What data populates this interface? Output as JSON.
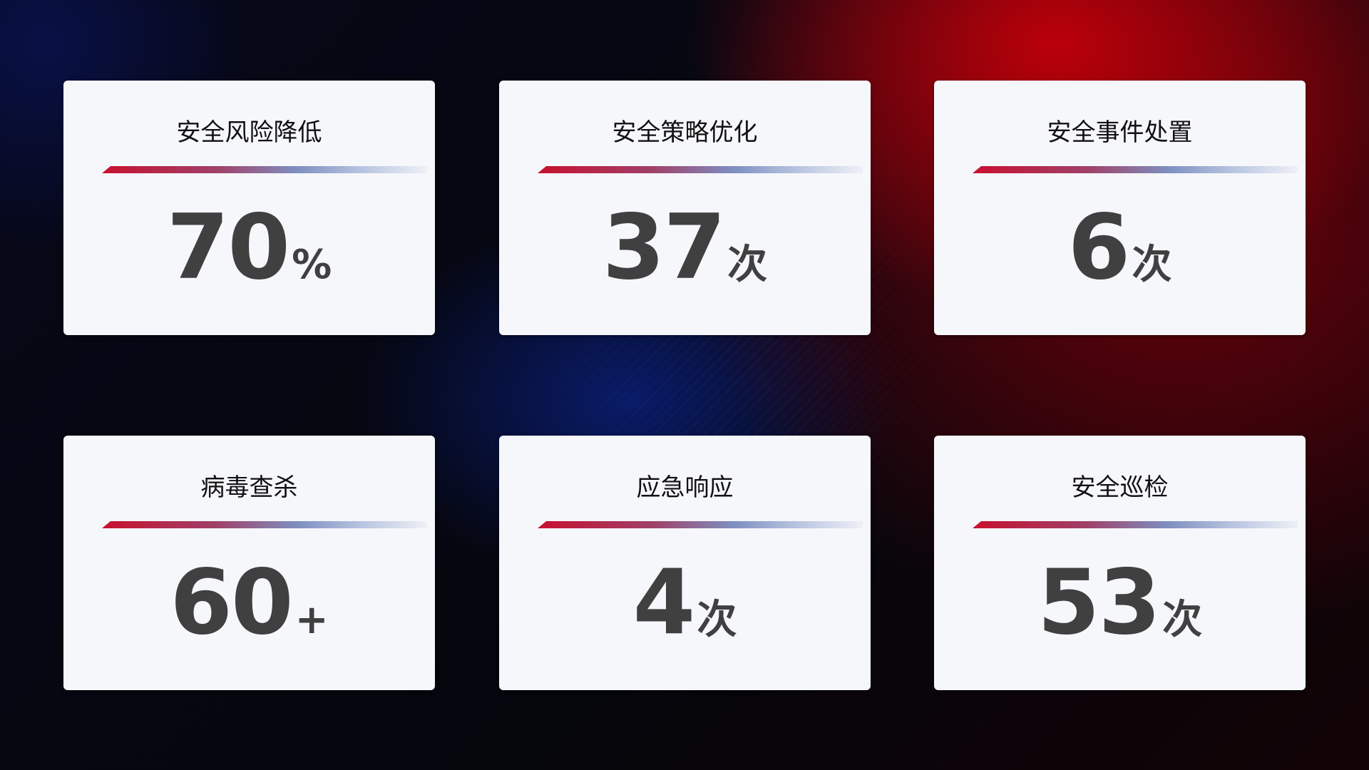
{
  "cards": [
    {
      "title": "安全风险降低",
      "value": "70",
      "suffix": "%"
    },
    {
      "title": "安全策略优化",
      "value": "37",
      "suffix": "次"
    },
    {
      "title": "安全事件处置",
      "value": "6",
      "suffix": "次"
    },
    {
      "title": "病毒查杀",
      "value": "60",
      "suffix": "+"
    },
    {
      "title": "应急响应",
      "value": "4",
      "suffix": "次"
    },
    {
      "title": "安全巡检",
      "value": "53",
      "suffix": "次"
    }
  ],
  "colors": {
    "accent_red": "#c8102e",
    "accent_blue": "#7d8fc0",
    "card_bg": "#f6f7fb",
    "value_text": "#404040"
  }
}
